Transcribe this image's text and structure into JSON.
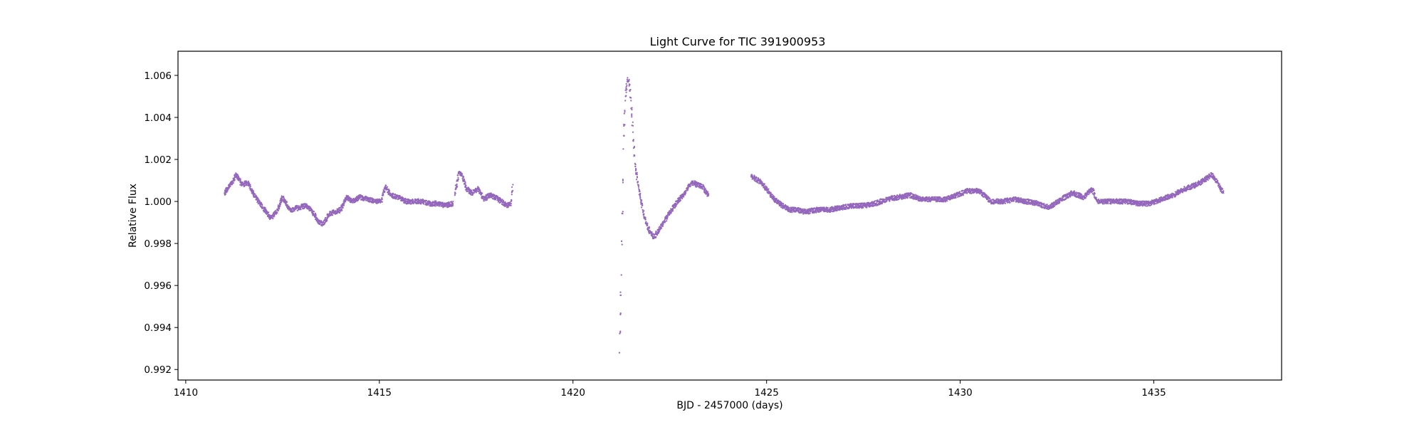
{
  "chart_data": {
    "type": "scatter",
    "title": "Light Curve for TIC 391900953",
    "xlabel": "BJD - 2457000 (days)",
    "ylabel": "Relative Flux",
    "xlim": [
      1409.8,
      1438.3
    ],
    "ylim": [
      0.9915,
      1.00715
    ],
    "xticks": [
      1410,
      1415,
      1420,
      1425,
      1430,
      1435
    ],
    "xtick_labels": [
      "1410",
      "1415",
      "1420",
      "1425",
      "1430",
      "1435"
    ],
    "yticks": [
      0.992,
      0.994,
      0.996,
      0.998,
      1.0,
      1.002,
      1.004,
      1.006
    ],
    "ytick_labels": [
      "0.992",
      "0.994",
      "0.996",
      "0.998",
      "1.000",
      "1.002",
      "1.004",
      "1.006"
    ],
    "grid": false,
    "legend": "none",
    "marker_color": "#9467bd",
    "marker_size": 1.6,
    "series": [
      {
        "segments": [
          {
            "x": [
              1411.0,
              1411.2,
              1411.3,
              1411.45,
              1411.6,
              1411.8,
              1412.0,
              1412.2,
              1412.35,
              1412.5,
              1412.7,
              1412.9,
              1413.1,
              1413.25,
              1413.4,
              1413.55,
              1413.7,
              1413.85,
              1414.0,
              1414.15,
              1414.3,
              1414.5,
              1414.7,
              1414.9,
              1415.05,
              1415.15,
              1415.3,
              1415.5,
              1415.7,
              1415.9,
              1416.1,
              1416.3,
              1416.5,
              1416.7,
              1416.9
            ],
            "y": [
              1.0004,
              1.0009,
              1.0013,
              1.0008,
              1.0009,
              1.0002,
              0.9997,
              0.9992,
              0.9995,
              1.0002,
              0.9996,
              0.9997,
              0.9998,
              0.9996,
              0.9991,
              0.9989,
              0.9994,
              0.9995,
              0.9996,
              1.0002,
              1.0,
              1.0002,
              1.0001,
              1.0,
              1.0,
              1.0007,
              1.0003,
              1.0002,
              1.0,
              1.0,
              1.0,
              0.9999,
              0.9999,
              0.9998,
              0.9999
            ]
          },
          {
            "x": [
              1416.95,
              1417.05,
              1417.15,
              1417.25,
              1417.4,
              1417.55,
              1417.7,
              1417.85,
              1418.0,
              1418.15,
              1418.3,
              1418.4,
              1418.45
            ],
            "y": [
              1.0003,
              1.0014,
              1.0012,
              1.0006,
              1.0004,
              1.0006,
              1.0001,
              1.0003,
              1.0002,
              1.0,
              0.9998,
              0.9999,
              1.0008
            ]
          },
          {
            "x": [
              1421.2,
              1421.25,
              1421.3,
              1421.35,
              1421.4,
              1421.45,
              1421.5,
              1421.55,
              1421.6,
              1421.7,
              1421.8,
              1421.9,
              1422.0,
              1422.1,
              1422.2,
              1422.35,
              1422.5,
              1422.7,
              1422.9,
              1423.0,
              1423.1,
              1423.2,
              1423.35,
              1423.5
            ],
            "y": [
              0.9928,
              0.9965,
              1.0025,
              1.0048,
              1.0058,
              1.0058,
              1.0048,
              1.0033,
              1.0018,
              1.0006,
              0.9996,
              0.9989,
              0.9985,
              0.9983,
              0.9986,
              0.999,
              0.9995,
              1.0,
              1.0004,
              1.0008,
              1.0009,
              1.0008,
              1.0007,
              1.0003
            ]
          },
          {
            "x": [
              1424.6,
              1424.8,
              1425.0,
              1425.2,
              1425.4,
              1425.6,
              1425.8,
              1426.0,
              1426.3,
              1426.6,
              1426.9,
              1427.2,
              1427.5,
              1427.8,
              1428.1,
              1428.4,
              1428.7,
              1429.0,
              1429.3,
              1429.6,
              1429.9,
              1430.2,
              1430.5,
              1430.8,
              1431.1,
              1431.4,
              1431.7,
              1432.0,
              1432.3,
              1432.6,
              1432.9,
              1433.2,
              1433.4,
              1433.55,
              1433.7,
              1434.0,
              1434.3,
              1434.6,
              1434.9,
              1435.2,
              1435.5,
              1435.8,
              1436.1,
              1436.3,
              1436.5,
              1436.65,
              1436.8
            ],
            "y": [
              1.0012,
              1.001,
              1.0006,
              1.0001,
              0.9998,
              0.9996,
              0.9996,
              0.9995,
              0.9996,
              0.9996,
              0.9997,
              0.9998,
              0.9998,
              0.9999,
              1.0001,
              1.0002,
              1.0003,
              1.0001,
              1.0001,
              1.0001,
              1.0003,
              1.0005,
              1.0005,
              1.0,
              1.0,
              1.0001,
              1.0,
              0.9999,
              0.9997,
              1.0001,
              1.0004,
              1.0002,
              1.0006,
              1.0,
              1.0,
              1.0,
              1.0,
              0.9999,
              0.9999,
              1.0001,
              1.0003,
              1.0006,
              1.0008,
              1.001,
              1.0013,
              1.0009,
              1.0004
            ]
          }
        ]
      }
    ]
  }
}
